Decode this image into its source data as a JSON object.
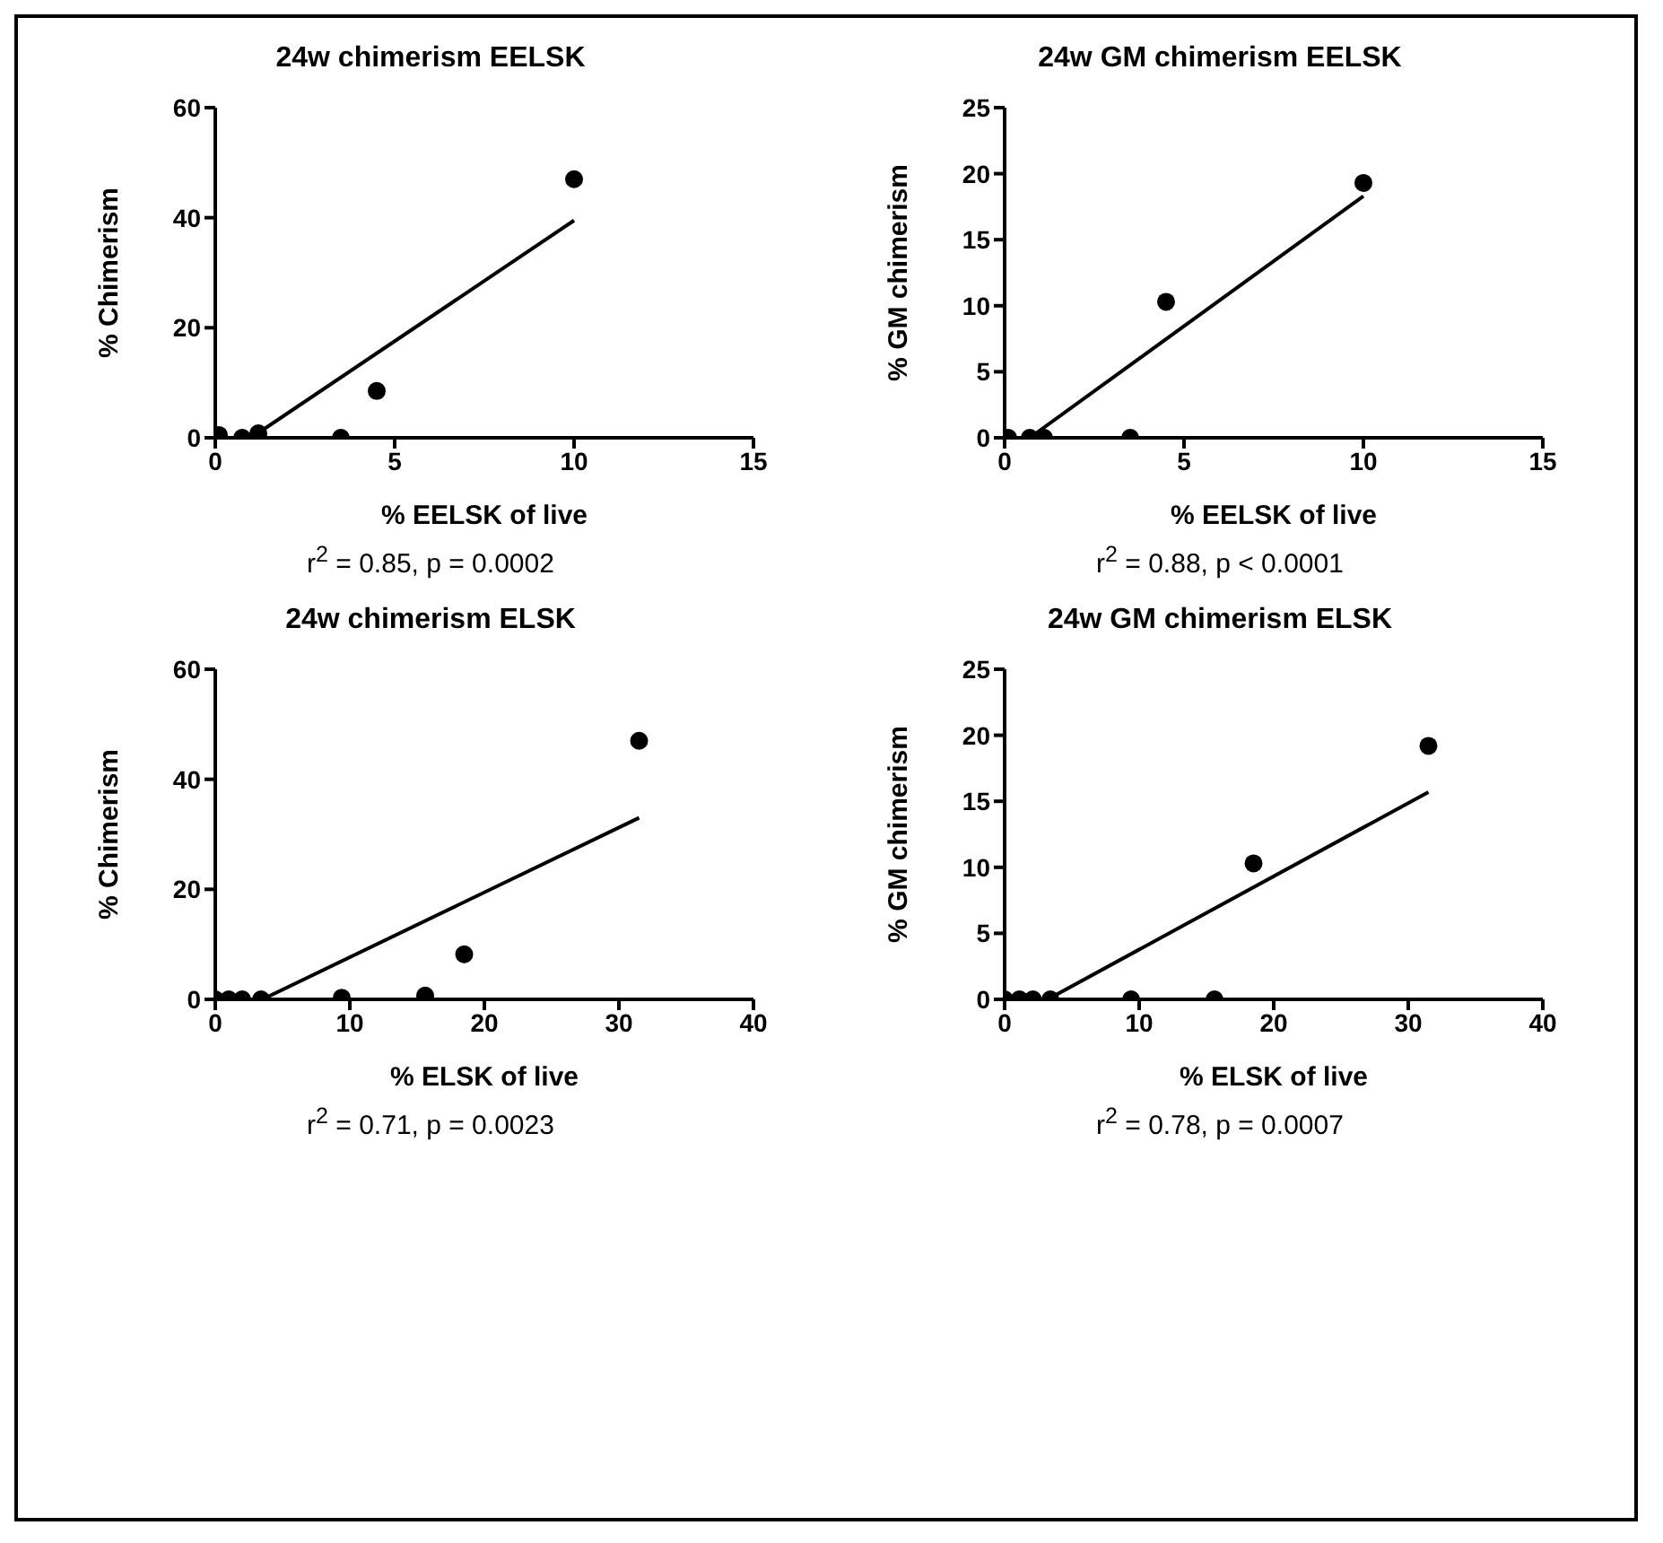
{
  "chart_data": [
    {
      "type": "scatter",
      "title": "24w chimerism EELSK",
      "xlabel": "% EELSK of live",
      "ylabel": "% Chimerism",
      "annotations": [
        "r$^{2}$ = 0.85, p = 0.0002"
      ],
      "xlim": [
        0,
        15
      ],
      "xticks": [
        0,
        5,
        10,
        15
      ],
      "ylim": [
        0,
        60
      ],
      "yticks": [
        0,
        20,
        40,
        60
      ],
      "series": [
        {
          "type": "scatter",
          "marker": "circle",
          "color": "#000000",
          "x": [
            0.1,
            0.75,
            1.2,
            3.5,
            4.5,
            10
          ],
          "values": [
            0.5,
            0,
            0.8,
            0,
            8.5,
            47
          ]
        },
        {
          "type": "line",
          "marker": "none",
          "color": "#000000",
          "x": [
            1,
            10
          ],
          "values": [
            0,
            39.5
          ]
        }
      ]
    },
    {
      "type": "scatter",
      "title": "24w GM chimerism EELSK",
      "xlabel": "% EELSK of live",
      "ylabel": "% GM chimerism",
      "annotations": [
        "r$^{2}$ = 0.88, p < 0.0001"
      ],
      "xlim": [
        0,
        15
      ],
      "xticks": [
        0,
        5,
        10,
        15
      ],
      "ylim": [
        0,
        25
      ],
      "yticks": [
        0,
        5,
        10,
        15,
        20,
        25
      ],
      "series": [
        {
          "type": "scatter",
          "marker": "circle",
          "color": "#000000",
          "x": [
            0.1,
            0.7,
            1.1,
            3.5,
            4.5,
            10
          ],
          "values": [
            0,
            0,
            0,
            0,
            10.3,
            19.3
          ]
        },
        {
          "type": "line",
          "marker": "none",
          "color": "#000000",
          "x": [
            0.7,
            10
          ],
          "values": [
            0,
            18.3
          ]
        }
      ]
    },
    {
      "type": "scatter",
      "title": "24w chimerism ELSK",
      "xlabel": "% ELSK of live",
      "ylabel": "% Chimerism",
      "annotations": [
        "r$^{2}$ = 0.71, p = 0.0023"
      ],
      "xlim": [
        0,
        40
      ],
      "xticks": [
        0,
        10,
        20,
        30,
        40
      ],
      "ylim": [
        0,
        60
      ],
      "yticks": [
        0,
        20,
        40,
        60
      ],
      "series": [
        {
          "type": "scatter",
          "marker": "circle",
          "color": "#000000",
          "x": [
            0,
            1,
            2,
            3.4,
            9.4,
            15.6,
            18.5,
            31.5
          ],
          "values": [
            0,
            0,
            0,
            0,
            0.3,
            0.7,
            8.2,
            47
          ]
        },
        {
          "type": "line",
          "marker": "none",
          "color": "#000000",
          "x": [
            3.5,
            31.5
          ],
          "values": [
            0,
            33
          ]
        }
      ]
    },
    {
      "type": "scatter",
      "title": "24w GM chimerism ELSK",
      "xlabel": "% ELSK of live",
      "ylabel": "% GM chimerism",
      "annotations": [
        "r$^{2}$ = 0.78, p = 0.0007"
      ],
      "xlim": [
        0,
        40
      ],
      "xticks": [
        0,
        10,
        20,
        30,
        40
      ],
      "ylim": [
        0,
        25
      ],
      "yticks": [
        0,
        5,
        10,
        15,
        20,
        25
      ],
      "series": [
        {
          "type": "scatter",
          "marker": "circle",
          "color": "#000000",
          "x": [
            0,
            1.1,
            2.1,
            3.4,
            9.4,
            15.6,
            18.5,
            31.5
          ],
          "values": [
            0,
            0,
            0,
            0,
            0,
            0,
            10.3,
            19.2
          ]
        },
        {
          "type": "line",
          "marker": "none",
          "color": "#000000",
          "x": [
            3.2,
            31.5
          ],
          "values": [
            0,
            15.7
          ]
        }
      ]
    }
  ]
}
